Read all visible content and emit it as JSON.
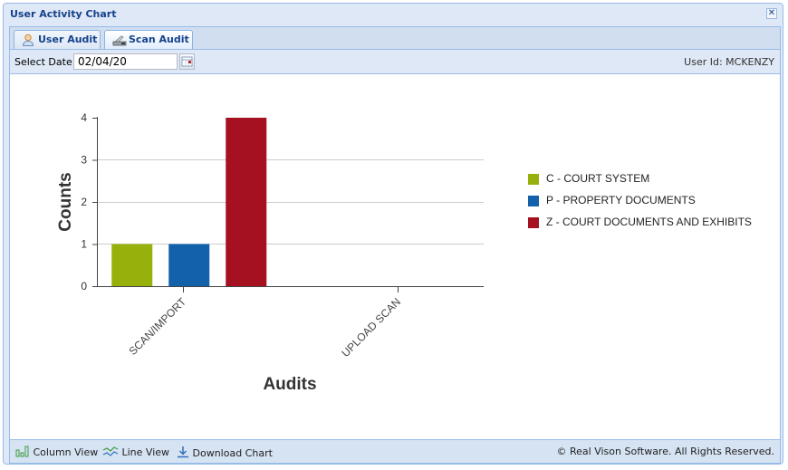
{
  "window": {
    "title": "User Activity Chart",
    "close_icon": "close-icon"
  },
  "tabs": [
    {
      "label": "User Audit",
      "icon": "user-icon",
      "active": false
    },
    {
      "label": "Scan Audit",
      "icon": "scanner-icon",
      "active": true
    }
  ],
  "toolbar": {
    "date_label": "Select Date:",
    "date_value": "02/04/20",
    "calendar_icon": "calendar-icon",
    "user_id": "User Id: MCKENZY"
  },
  "footer": {
    "column_view": "Column View",
    "line_view": "Line View",
    "download_chart": "Download Chart",
    "copyright": "© Real Vison Software. All Rights Reserved."
  },
  "chart_data": {
    "type": "bar",
    "title": "",
    "xlabel": "Audits",
    "ylabel": "Counts",
    "categories": [
      "SCAN/IMPORT",
      "UPLOAD SCAN"
    ],
    "series": [
      {
        "name": "C - COURT SYSTEM",
        "color": "#97b00b",
        "values": [
          1,
          0
        ]
      },
      {
        "name": "P - PROPERTY DOCUMENTS",
        "color": "#1261aa",
        "values": [
          1,
          0
        ]
      },
      {
        "name": "Z - COURT DOCUMENTS AND EXHIBITS",
        "color": "#a51120",
        "values": [
          4,
          0
        ]
      }
    ],
    "yticks": [
      "0",
      "1",
      "2",
      "3",
      "4"
    ],
    "ylim": [
      0,
      4
    ],
    "grid": true,
    "legend_position": "right"
  }
}
